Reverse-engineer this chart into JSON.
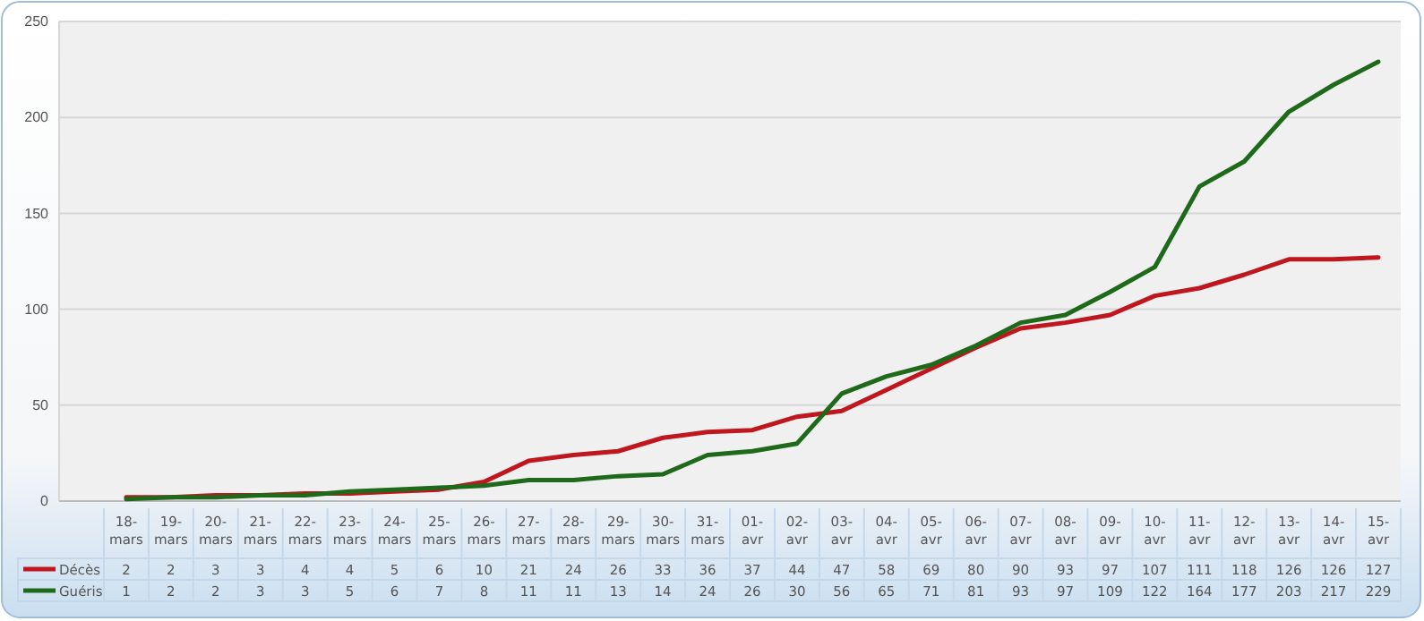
{
  "chart_data": {
    "type": "line",
    "categories": [
      "18-mars",
      "19-mars",
      "20-mars",
      "21-mars",
      "22-mars",
      "23-mars",
      "24-mars",
      "25-mars",
      "26-mars",
      "27-mars",
      "28-mars",
      "29-mars",
      "30-mars",
      "31-mars",
      "01-avr",
      "02-avr",
      "03-avr",
      "04-avr",
      "05-avr",
      "06-avr",
      "07-avr",
      "08-avr",
      "09-avr",
      "10-avr",
      "11-avr",
      "12-avr",
      "13-avr",
      "14-avr",
      "15-avr"
    ],
    "series": [
      {
        "name": "Décès",
        "color": "#c0161e",
        "values": [
          2,
          2,
          3,
          3,
          4,
          4,
          5,
          6,
          10,
          21,
          24,
          26,
          33,
          36,
          37,
          44,
          47,
          58,
          69,
          80,
          90,
          93,
          97,
          107,
          111,
          118,
          126,
          126,
          127
        ]
      },
      {
        "name": "Guéris",
        "color": "#1e6a1a",
        "values": [
          1,
          2,
          2,
          3,
          3,
          5,
          6,
          7,
          8,
          11,
          11,
          13,
          14,
          24,
          26,
          30,
          56,
          65,
          71,
          81,
          93,
          97,
          109,
          122,
          164,
          177,
          203,
          217,
          229
        ]
      }
    ],
    "ylim": [
      0,
      250
    ],
    "yticks": [
      0,
      50,
      100,
      150,
      200,
      250
    ],
    "grid": "y",
    "legend": "bottom",
    "data_labels": true,
    "marker": "none",
    "line_style": "solid"
  }
}
